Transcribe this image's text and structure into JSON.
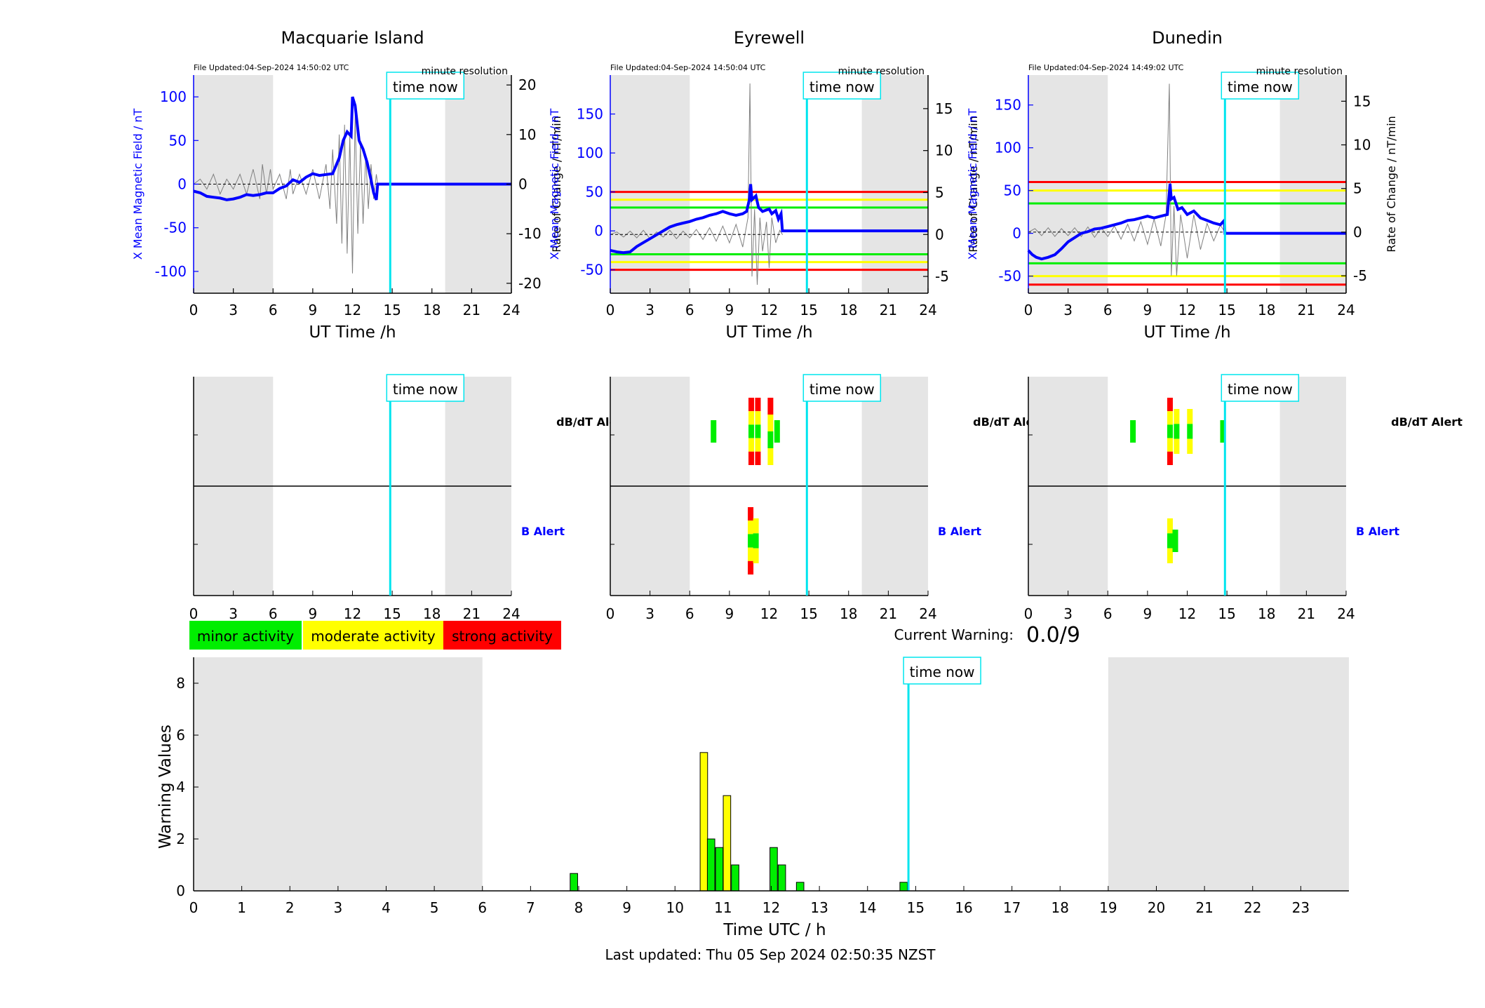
{
  "colors": {
    "shade": "#e5e5e5",
    "now_line": "#00e5ee",
    "field": "#0000ff",
    "rate": "#808080",
    "minor": "#00ee00",
    "moderate": "#ffff00",
    "strong": "#ff0000"
  },
  "time_now_label": "time now",
  "now_hour": 14.85,
  "stations": [
    {
      "name": "Macquarie Island",
      "file_updated": "File Updated:04-Sep-2024 14:50:02 UTC",
      "resolution": "minute resolution",
      "left_axis_label": "X Mean Magnetic Field / nT",
      "right_axis_label": "Rate of Change / nT/min",
      "x_axis_label": "UT Time /h",
      "night_shade": [
        [
          0,
          6
        ],
        [
          19,
          24
        ]
      ],
      "left_range": [
        -125,
        125
      ],
      "left_ticks": [
        -100,
        -50,
        0,
        50,
        100
      ],
      "right_range": [
        -22,
        22
      ],
      "right_ticks": [
        -20,
        -10,
        0,
        10,
        20
      ],
      "field_thresholds": [],
      "field_series": [
        [
          0,
          -8
        ],
        [
          0.5,
          -10
        ],
        [
          1,
          -14
        ],
        [
          1.5,
          -15
        ],
        [
          2,
          -16
        ],
        [
          2.5,
          -18
        ],
        [
          3,
          -17
        ],
        [
          3.5,
          -15
        ],
        [
          4,
          -12
        ],
        [
          4.5,
          -13
        ],
        [
          5,
          -12
        ],
        [
          5.5,
          -10
        ],
        [
          6,
          -10
        ],
        [
          6.5,
          -5
        ],
        [
          7,
          -2
        ],
        [
          7.5,
          5
        ],
        [
          8,
          2
        ],
        [
          8.5,
          8
        ],
        [
          9,
          12
        ],
        [
          9.5,
          10
        ],
        [
          10,
          11
        ],
        [
          10.5,
          12
        ],
        [
          11,
          30
        ],
        [
          11.3,
          50
        ],
        [
          11.6,
          60
        ],
        [
          11.9,
          55
        ],
        [
          12,
          100
        ],
        [
          12.2,
          90
        ],
        [
          12.5,
          50
        ],
        [
          12.8,
          40
        ],
        [
          13.1,
          25
        ],
        [
          13.4,
          5
        ],
        [
          13.6,
          -10
        ],
        [
          13.8,
          -18
        ],
        [
          13.9,
          0
        ],
        [
          24,
          0
        ]
      ],
      "rate_series": [
        [
          0,
          0
        ],
        [
          0.5,
          1
        ],
        [
          1,
          -1
        ],
        [
          1.5,
          2
        ],
        [
          2,
          -2
        ],
        [
          2.5,
          1
        ],
        [
          3,
          -1
        ],
        [
          3.5,
          2
        ],
        [
          4,
          -2
        ],
        [
          4.5,
          3
        ],
        [
          5,
          -3
        ],
        [
          5.2,
          4
        ],
        [
          5.5,
          -2
        ],
        [
          5.8,
          3
        ],
        [
          6,
          -1
        ],
        [
          6.5,
          2
        ],
        [
          7,
          -3
        ],
        [
          7.3,
          3
        ],
        [
          7.5,
          -2
        ],
        [
          8,
          2
        ],
        [
          8.5,
          -2
        ],
        [
          9,
          3
        ],
        [
          9.5,
          -3
        ],
        [
          10,
          4
        ],
        [
          10.3,
          -5
        ],
        [
          10.5,
          7
        ],
        [
          10.8,
          -8
        ],
        [
          11,
          10
        ],
        [
          11.2,
          -12
        ],
        [
          11.4,
          12
        ],
        [
          11.6,
          -14
        ],
        [
          11.8,
          10
        ],
        [
          12,
          -18
        ],
        [
          12.2,
          14
        ],
        [
          12.4,
          -10
        ],
        [
          12.6,
          8
        ],
        [
          12.8,
          -8
        ],
        [
          13,
          6
        ],
        [
          13.2,
          -5
        ],
        [
          13.4,
          4
        ],
        [
          13.6,
          -3
        ],
        [
          13.8,
          2
        ],
        [
          13.9,
          0
        ]
      ],
      "dbdt_alerts": [],
      "b_alerts": []
    },
    {
      "name": "Eyrewell",
      "file_updated": "File Updated:04-Sep-2024 14:50:04 UTC",
      "resolution": "minute resolution",
      "left_axis_label": "X Mean Magnetic Field / nT",
      "right_axis_label": "Rate of Change / nT/min",
      "x_axis_label": "UT Time /h",
      "night_shade": [
        [
          0,
          6
        ],
        [
          19,
          24
        ]
      ],
      "left_range": [
        -80,
        200
      ],
      "left_ticks": [
        -50,
        0,
        50,
        100,
        150
      ],
      "right_range": [
        -7,
        19
      ],
      "right_ticks": [
        -5,
        0,
        5,
        10,
        15
      ],
      "field_thresholds": [
        {
          "value": 50,
          "level": "strong"
        },
        {
          "value": 40,
          "level": "moderate"
        },
        {
          "value": 30,
          "level": "minor"
        },
        {
          "value": -30,
          "level": "minor"
        },
        {
          "value": -40,
          "level": "moderate"
        },
        {
          "value": -50,
          "level": "strong"
        }
      ],
      "field_series": [
        [
          0,
          -25
        ],
        [
          0.5,
          -27
        ],
        [
          1,
          -28
        ],
        [
          1.5,
          -27
        ],
        [
          2,
          -20
        ],
        [
          2.5,
          -15
        ],
        [
          3,
          -10
        ],
        [
          3.5,
          -5
        ],
        [
          4,
          0
        ],
        [
          4.5,
          5
        ],
        [
          5,
          8
        ],
        [
          5.5,
          10
        ],
        [
          6,
          12
        ],
        [
          6.5,
          15
        ],
        [
          7,
          17
        ],
        [
          7.5,
          20
        ],
        [
          8,
          22
        ],
        [
          8.5,
          25
        ],
        [
          9,
          22
        ],
        [
          9.5,
          20
        ],
        [
          10,
          22
        ],
        [
          10.3,
          25
        ],
        [
          10.5,
          40
        ],
        [
          10.6,
          60
        ],
        [
          10.7,
          40
        ],
        [
          11,
          45
        ],
        [
          11.2,
          30
        ],
        [
          11.5,
          25
        ],
        [
          12,
          28
        ],
        [
          12.2,
          22
        ],
        [
          12.5,
          26
        ],
        [
          12.7,
          15
        ],
        [
          12.9,
          22
        ],
        [
          13,
          0
        ],
        [
          24,
          0
        ]
      ],
      "rate_series": [
        [
          0,
          0
        ],
        [
          0.5,
          0.3
        ],
        [
          1,
          -0.3
        ],
        [
          1.5,
          0.4
        ],
        [
          2,
          -0.4
        ],
        [
          2.5,
          0.5
        ],
        [
          3,
          -0.5
        ],
        [
          3.5,
          0.3
        ],
        [
          4,
          -0.3
        ],
        [
          4.5,
          0.5
        ],
        [
          5,
          -0.5
        ],
        [
          5.5,
          0.4
        ],
        [
          6,
          -0.4
        ],
        [
          6.5,
          0.6
        ],
        [
          7,
          -0.6
        ],
        [
          7.5,
          0.8
        ],
        [
          8,
          -0.8
        ],
        [
          8.5,
          1
        ],
        [
          9,
          -1
        ],
        [
          9.5,
          1.2
        ],
        [
          10,
          -1.5
        ],
        [
          10.4,
          2
        ],
        [
          10.55,
          18
        ],
        [
          10.7,
          -5
        ],
        [
          10.9,
          3
        ],
        [
          11.1,
          -6
        ],
        [
          11.3,
          2
        ],
        [
          11.5,
          -2
        ],
        [
          11.8,
          1.5
        ],
        [
          12,
          -4
        ],
        [
          12.2,
          2
        ],
        [
          12.5,
          -1
        ],
        [
          12.8,
          0.5
        ],
        [
          13,
          0
        ]
      ],
      "dbdt_alerts": [
        {
          "hour": 7.8,
          "segments": [
            "minor"
          ]
        },
        {
          "hour": 10.65,
          "segments": [
            "strong",
            "moderate",
            "minor",
            "moderate",
            "strong"
          ]
        },
        {
          "hour": 11.15,
          "segments": [
            "strong",
            "moderate",
            "minor",
            "moderate",
            "strong"
          ]
        },
        {
          "hour": 12.1,
          "segments": [
            "strong",
            "moderate",
            "minor",
            "moderate"
          ]
        },
        {
          "hour": 12.6,
          "segments": [
            "minor"
          ]
        }
      ],
      "b_alerts": [
        {
          "hour": 10.6,
          "segments": [
            "strong",
            "moderate",
            "minor",
            "moderate",
            "strong"
          ]
        },
        {
          "hour": 11.0,
          "segments": [
            "moderate",
            "minor",
            "moderate"
          ]
        }
      ]
    },
    {
      "name": "Dunedin",
      "file_updated": "File Updated:04-Sep-2024 14:49:02 UTC",
      "resolution": "minute resolution",
      "left_axis_label": "X Mean Magnetic Field / nT",
      "right_axis_label": "Rate of Change / nT/min",
      "x_axis_label": "UT Time /h",
      "night_shade": [
        [
          0,
          6
        ],
        [
          19,
          24
        ]
      ],
      "left_range": [
        -70,
        185
      ],
      "left_ticks": [
        -50,
        0,
        50,
        100,
        150
      ],
      "right_range": [
        -7,
        18
      ],
      "right_ticks": [
        -5,
        0,
        5,
        10,
        15
      ],
      "field_thresholds": [
        {
          "value": 60,
          "level": "strong"
        },
        {
          "value": 50,
          "level": "moderate"
        },
        {
          "value": 35,
          "level": "minor"
        },
        {
          "value": -35,
          "level": "minor"
        },
        {
          "value": -50,
          "level": "moderate"
        },
        {
          "value": -60,
          "level": "strong"
        }
      ],
      "field_series": [
        [
          0,
          -20
        ],
        [
          0.3,
          -25
        ],
        [
          0.6,
          -28
        ],
        [
          1,
          -30
        ],
        [
          1.5,
          -28
        ],
        [
          2,
          -25
        ],
        [
          2.5,
          -18
        ],
        [
          3,
          -10
        ],
        [
          3.5,
          -5
        ],
        [
          4,
          0
        ],
        [
          4.5,
          2
        ],
        [
          5,
          5
        ],
        [
          5.5,
          6
        ],
        [
          6,
          8
        ],
        [
          6.5,
          10
        ],
        [
          7,
          12
        ],
        [
          7.5,
          15
        ],
        [
          8,
          16
        ],
        [
          8.5,
          18
        ],
        [
          9,
          20
        ],
        [
          9.5,
          18
        ],
        [
          10,
          20
        ],
        [
          10.5,
          22
        ],
        [
          10.7,
          58
        ],
        [
          10.8,
          40
        ],
        [
          11,
          42
        ],
        [
          11.3,
          28
        ],
        [
          11.6,
          30
        ],
        [
          12,
          22
        ],
        [
          12.5,
          26
        ],
        [
          13,
          18
        ],
        [
          13.5,
          15
        ],
        [
          14,
          12
        ],
        [
          14.5,
          10
        ],
        [
          14.8,
          15
        ],
        [
          14.85,
          0
        ],
        [
          24,
          0
        ]
      ],
      "rate_series": [
        [
          0,
          0
        ],
        [
          0.5,
          0.4
        ],
        [
          1,
          -0.4
        ],
        [
          1.5,
          0.5
        ],
        [
          2,
          -0.5
        ],
        [
          2.5,
          0.4
        ],
        [
          3,
          -0.4
        ],
        [
          3.5,
          0.5
        ],
        [
          4,
          -0.5
        ],
        [
          4.5,
          0.6
        ],
        [
          5,
          -0.6
        ],
        [
          5.5,
          0.5
        ],
        [
          6,
          -0.5
        ],
        [
          6.5,
          0.7
        ],
        [
          7,
          -0.8
        ],
        [
          7.5,
          0.9
        ],
        [
          8,
          -1
        ],
        [
          8.5,
          1.2
        ],
        [
          9,
          -1.4
        ],
        [
          9.5,
          1.5
        ],
        [
          10,
          -1.6
        ],
        [
          10.4,
          2
        ],
        [
          10.65,
          17
        ],
        [
          10.8,
          -5
        ],
        [
          11,
          3
        ],
        [
          11.2,
          -5
        ],
        [
          11.5,
          2
        ],
        [
          12,
          -3
        ],
        [
          12.5,
          2
        ],
        [
          13,
          -2
        ],
        [
          13.5,
          1
        ],
        [
          14,
          -1
        ],
        [
          14.5,
          0.8
        ],
        [
          14.85,
          0
        ]
      ],
      "dbdt_alerts": [
        {
          "hour": 7.9,
          "segments": [
            "minor"
          ]
        },
        {
          "hour": 10.7,
          "segments": [
            "strong",
            "moderate",
            "minor",
            "moderate",
            "strong"
          ]
        },
        {
          "hour": 11.2,
          "segments": [
            "moderate",
            "minor",
            "moderate"
          ]
        },
        {
          "hour": 12.2,
          "segments": [
            "moderate",
            "minor",
            "moderate"
          ]
        },
        {
          "hour": 14.7,
          "segments": [
            "minor"
          ]
        }
      ],
      "b_alerts": [
        {
          "hour": 10.7,
          "segments": [
            "moderate",
            "minor",
            "moderate"
          ]
        },
        {
          "hour": 11.1,
          "segments": [
            "minor"
          ]
        }
      ]
    }
  ],
  "alert_panel": {
    "dbdt_label": "dB/dT Alert",
    "b_label": "B Alert"
  },
  "legend": {
    "minor": "minor activity",
    "moderate": "moderate activity",
    "strong": "strong activity"
  },
  "current_warning": {
    "label": "Current Warning:",
    "value": "0.0/9"
  },
  "chart_data": {
    "type": "bar",
    "xlabel": "Time UTC / h",
    "ylabel": "Warning Values",
    "xlim": [
      0,
      24
    ],
    "ylim": [
      0,
      9
    ],
    "y_ticks": [
      0,
      2,
      4,
      6,
      8
    ],
    "night_shade": [
      [
        0,
        6
      ],
      [
        19,
        24
      ]
    ],
    "bars": [
      {
        "hour": 7.9,
        "value": 0.67,
        "level": "minor"
      },
      {
        "hour": 10.6,
        "value": 5.33,
        "level": "moderate"
      },
      {
        "hour": 10.75,
        "value": 2.0,
        "level": "minor"
      },
      {
        "hour": 10.92,
        "value": 1.67,
        "level": "minor"
      },
      {
        "hour": 11.08,
        "value": 3.67,
        "level": "moderate"
      },
      {
        "hour": 11.25,
        "value": 1.0,
        "level": "minor"
      },
      {
        "hour": 12.05,
        "value": 1.67,
        "level": "minor"
      },
      {
        "hour": 12.22,
        "value": 1.0,
        "level": "minor"
      },
      {
        "hour": 12.6,
        "value": 0.33,
        "level": "minor"
      },
      {
        "hour": 14.75,
        "value": 0.33,
        "level": "minor"
      }
    ]
  },
  "footer": "Last updated: Thu 05 Sep 2024 02:50:35 NZST"
}
